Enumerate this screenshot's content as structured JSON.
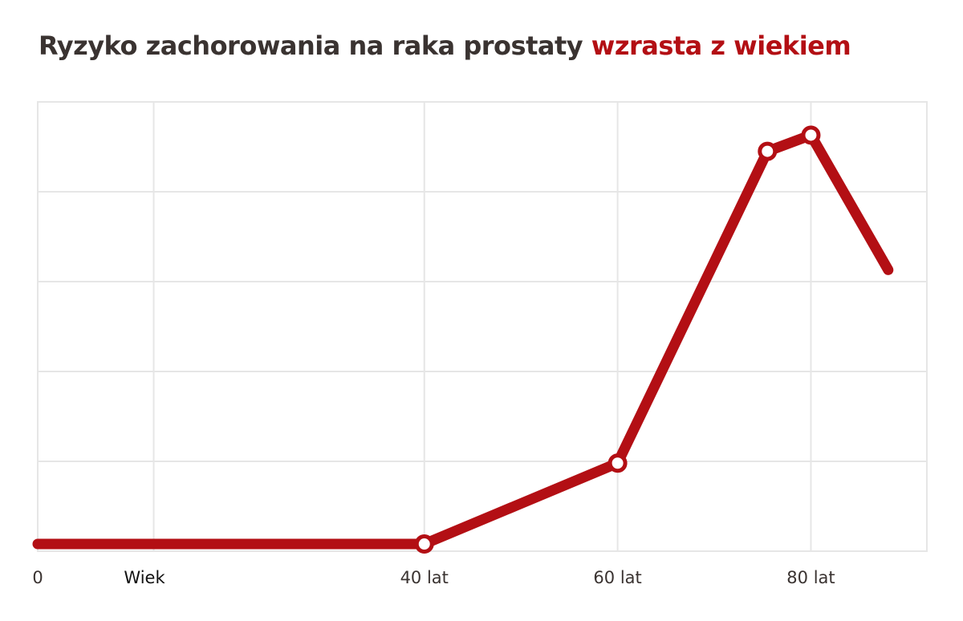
{
  "header": {
    "title_main": "Ryzyko zachorowania na raka prostaty",
    "title_accent": "wzrasta z wiekiem"
  },
  "colors": {
    "line": "#b30f14",
    "title": "#3a3331",
    "accent": "#b30f14",
    "grid": "#e6e6e6"
  },
  "chart_data": {
    "type": "line",
    "title": "Ryzyko zachorowania na raka prostaty wzrasta z wiekiem",
    "xlabel": "Wiek",
    "ylabel": "",
    "xlim": [
      0,
      92
    ],
    "ylim": [
      0,
      5
    ],
    "grid": true,
    "legend": "none",
    "x_ticks": [
      {
        "value": 0,
        "label": "0"
      },
      {
        "value": 40,
        "label": "40 lat"
      },
      {
        "value": 60,
        "label": "60 lat"
      },
      {
        "value": 80,
        "label": "80 lat"
      }
    ],
    "x_gridlines": [
      12,
      40,
      60,
      80
    ],
    "y_gridlines": [
      1,
      2,
      3,
      4
    ],
    "series": [
      {
        "x": [
          0,
          40,
          60,
          75.5,
          80,
          88
        ],
        "y": [
          0.08,
          0.08,
          0.98,
          4.45,
          4.63,
          3.13
        ],
        "markers": [
          false,
          true,
          true,
          true,
          true,
          false
        ]
      }
    ]
  }
}
